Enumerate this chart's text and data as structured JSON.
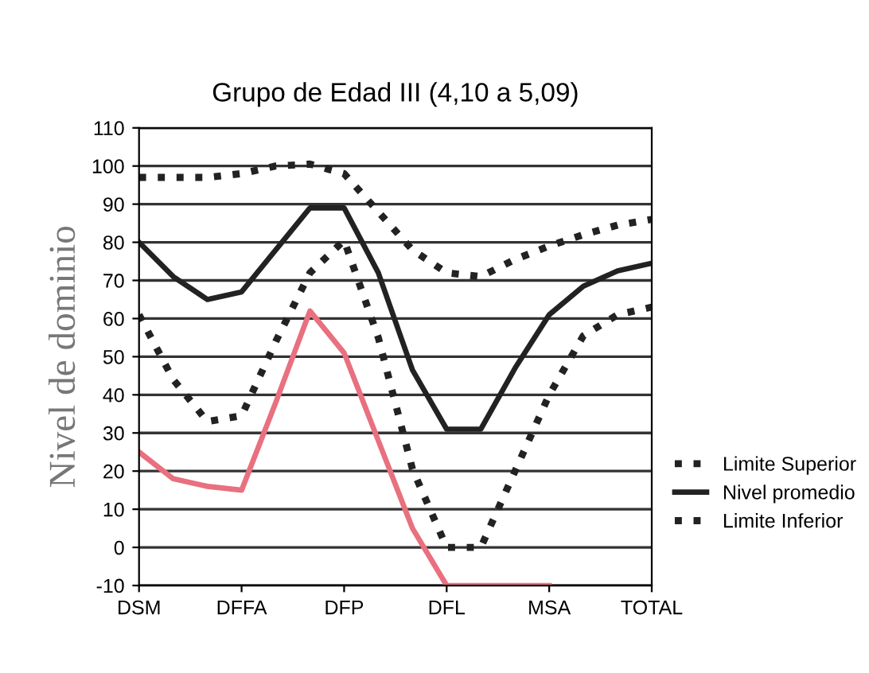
{
  "chart_data": {
    "type": "line",
    "title": "Grupo de Edad III (4,10 a 5,09)",
    "ylabel": "Nivel de dominio",
    "categories": [
      "DSM",
      null,
      null,
      "DFFA",
      null,
      null,
      "DFP",
      null,
      null,
      "DFL",
      null,
      null,
      "MSA",
      null,
      null,
      "TOTAL"
    ],
    "ylim": [
      -10,
      110
    ],
    "yticks": [
      -10,
      0,
      10,
      20,
      30,
      40,
      50,
      60,
      70,
      80,
      90,
      100,
      110
    ],
    "grid": "y",
    "legend": "right",
    "marker": "none",
    "series": [
      {
        "name": "Limite Superior",
        "color": "#222222",
        "line_style": "dotted",
        "values": [
          97,
          97,
          97,
          98,
          100,
          100.5,
          98,
          88,
          78,
          72,
          71,
          75.5,
          79,
          82,
          84.5,
          86
        ]
      },
      {
        "name": "Nivel promedio",
        "color": "#222222",
        "line_style": "solid",
        "values": [
          80,
          71,
          65,
          67,
          78,
          89,
          89,
          72,
          46.5,
          31,
          31,
          47,
          61,
          68.5,
          72.5,
          74.5
        ]
      },
      {
        "name": "Limite Inferior",
        "color": "#222222",
        "line_style": "dotted",
        "values": [
          61,
          44,
          33,
          34.5,
          54,
          72,
          80.5,
          55,
          20.5,
          0,
          0,
          20,
          40,
          55.5,
          61,
          63
        ]
      },
      {
        "color": "#e8707f",
        "line_style": "solid",
        "values": [
          25,
          18,
          16,
          15,
          38,
          62,
          51,
          28,
          5,
          -10,
          -10,
          -10,
          -10,
          null,
          null,
          null
        ]
      }
    ]
  }
}
